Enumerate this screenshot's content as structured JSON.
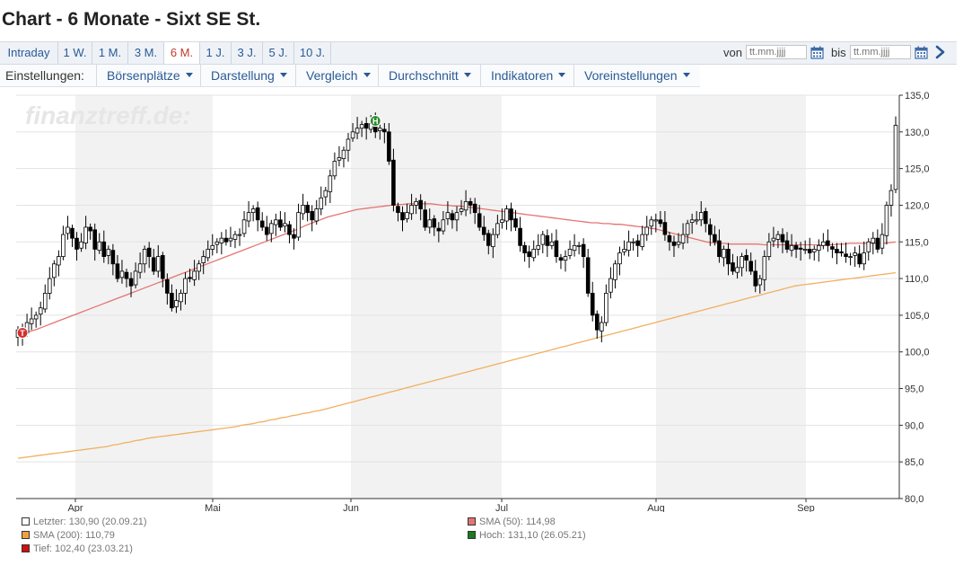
{
  "title": "Chart - 6 Monate - Sixt SE St.",
  "tabs": [
    {
      "label": "Intraday",
      "active": false
    },
    {
      "label": "1 W.",
      "active": false
    },
    {
      "label": "1 M.",
      "active": false
    },
    {
      "label": "3 M.",
      "active": false
    },
    {
      "label": "6 M.",
      "active": true
    },
    {
      "label": "1 J.",
      "active": false
    },
    {
      "label": "3 J.",
      "active": false
    },
    {
      "label": "5 J.",
      "active": false
    },
    {
      "label": "10 J.",
      "active": false
    }
  ],
  "date_range": {
    "from_label": "von",
    "from_placeholder": "tt.mm.jjjj",
    "to_label": "bis",
    "to_placeholder": "tt.mm.jjjj"
  },
  "settings": {
    "label": "Einstellungen:",
    "menus": [
      "Börsenplätze",
      "Darstellung",
      "Vergleich",
      "Durchschnitt",
      "Indikatoren",
      "Voreinstellungen"
    ]
  },
  "watermark": "finanztreff.de:",
  "colors": {
    "accent": "#2a5a96",
    "active_tab": "#c0392b",
    "sma50": "#e57373",
    "sma200": "#f0b060",
    "up_candle": "#ffffff",
    "down_candle": "#000000",
    "high_marker": "#2e8b2e",
    "low_marker": "#d32f2f",
    "shade": "#f2f2f2"
  },
  "chart_data": {
    "type": "candlestick",
    "ylim": [
      80,
      135
    ],
    "yticks": [
      "135,0",
      "130,0",
      "125,0",
      "120,0",
      "115,0",
      "110,0",
      "105,0",
      "100,0",
      "95,0",
      "90,0",
      "85,0",
      "80,0"
    ],
    "months": [
      "Apr",
      "Mai",
      "Jun",
      "Jul",
      "Aug",
      "Sep"
    ],
    "close": [
      103,
      102.4,
      104,
      104.5,
      105,
      106,
      108,
      110,
      112,
      113,
      116,
      117,
      115.5,
      114,
      115,
      117,
      116.5,
      114,
      115,
      113,
      114,
      112,
      110,
      111,
      110,
      109,
      111,
      112,
      114,
      113,
      111,
      113,
      110,
      108,
      106,
      107,
      108,
      110,
      110,
      111,
      112,
      113,
      114,
      114.5,
      115,
      115.5,
      115,
      115.5,
      116,
      116,
      118,
      119,
      119.5,
      118,
      117,
      116,
      117.5,
      118,
      117,
      117.5,
      116,
      115.5,
      119,
      120,
      119,
      118,
      119.5,
      121,
      122,
      124,
      126,
      126.5,
      127.5,
      129,
      130,
      130.5,
      131,
      130.5,
      131.1,
      130,
      130.5,
      130,
      126,
      120,
      119,
      118,
      119,
      120,
      120.5,
      119.5,
      117,
      118,
      117,
      116.5,
      118,
      119,
      118,
      119,
      119.5,
      120.5,
      120,
      119,
      117,
      116,
      114.5,
      116,
      117.5,
      118,
      119.5,
      118,
      117,
      114.5,
      113.5,
      113,
      114,
      114.5,
      116,
      114.5,
      115,
      113,
      112.5,
      113,
      114,
      114.5,
      114.5,
      113,
      108,
      105,
      103,
      104,
      108,
      110,
      112,
      113.5,
      114,
      115,
      115,
      114.5,
      116,
      117,
      118,
      118,
      117.5,
      116,
      115,
      114.5,
      115,
      116,
      117.5,
      118,
      118,
      119,
      117.5,
      116,
      115,
      113,
      114,
      112,
      111,
      111.5,
      113,
      112.5,
      111,
      109,
      110,
      113,
      115,
      115.5,
      116,
      115,
      114,
      114.5,
      114,
      114,
      114,
      113.5,
      114,
      114.5,
      115,
      114.5,
      114,
      113.5,
      113.5,
      113,
      113,
      113.5,
      112,
      113.5,
      115,
      115.5,
      114,
      116,
      120,
      122,
      130.9
    ],
    "sma50": [
      103,
      102.5,
      102.8,
      103,
      103.3,
      103.6,
      103.9,
      104.2,
      104.5,
      104.8,
      105.1,
      105.4,
      105.7,
      106,
      106.3,
      106.6,
      106.9,
      107.2,
      107.5,
      107.8,
      108.1,
      108.4,
      108.7,
      109,
      109.3,
      109.6,
      109.9,
      110.2,
      110.5,
      110.8,
      111.1,
      111.4,
      111.7,
      112,
      112.3,
      112.6,
      112.9,
      113.2,
      113.5,
      113.8,
      114.1,
      114.4,
      114.7,
      115,
      115.3,
      115.6,
      115.9,
      116.2,
      116.5,
      116.8,
      117.2,
      117.5,
      117.8,
      118.1,
      118.4,
      118.6,
      118.8,
      119,
      119.2,
      119.4,
      119.5,
      119.6,
      119.7,
      119.8,
      119.9,
      120,
      120.1,
      120.1,
      120.2,
      120.2,
      120.2,
      120.2,
      120.2,
      120.1,
      120,
      120,
      119.9,
      119.9,
      119.8,
      119.7,
      119.6,
      119.5,
      119.4,
      119.3,
      119.2,
      119.1,
      119,
      118.9,
      118.8,
      118.7,
      118.6,
      118.5,
      118.4,
      118.3,
      118.2,
      118.1,
      118,
      117.9,
      117.8,
      117.7,
      117.6,
      117.6,
      117.5,
      117.5,
      117.4,
      117.4,
      117.3,
      117.2,
      117.1,
      117,
      116.9,
      116.8,
      116.6,
      116.4,
      116.2,
      116,
      115.8,
      115.6,
      115.4,
      115.2,
      115,
      114.9,
      114.8,
      114.8,
      114.7,
      114.7,
      114.7,
      114.7,
      114.7,
      114.7,
      114.6,
      114.6,
      114.6,
      114.6,
      114.6,
      114.6,
      114.6,
      114.6,
      114.6,
      114.6,
      114.6,
      114.6,
      114.6,
      114.7,
      114.7,
      114.8,
      114.8,
      114.8,
      114.8,
      114.8,
      114.8,
      114.8,
      114.9,
      114.98
    ],
    "sma200": [
      85.5,
      85.6,
      85.7,
      85.8,
      85.9,
      86,
      86.1,
      86.2,
      86.3,
      86.4,
      86.5,
      86.6,
      86.7,
      86.8,
      86.9,
      87,
      87.1,
      87.3,
      87.4,
      87.6,
      87.7,
      87.9,
      88,
      88.2,
      88.3,
      88.4,
      88.5,
      88.6,
      88.7,
      88.8,
      88.9,
      89,
      89.1,
      89.2,
      89.3,
      89.4,
      89.5,
      89.6,
      89.7,
      89.8,
      90,
      90.1,
      90.2,
      90.4,
      90.5,
      90.7,
      90.8,
      91,
      91.1,
      91.3,
      91.4,
      91.6,
      91.7,
      91.9,
      92,
      92.2,
      92.4,
      92.6,
      92.8,
      93,
      93.2,
      93.4,
      93.6,
      93.8,
      94,
      94.2,
      94.4,
      94.6,
      94.8,
      95,
      95.2,
      95.4,
      95.6,
      95.8,
      96,
      96.2,
      96.4,
      96.6,
      96.8,
      97,
      97.2,
      97.4,
      97.6,
      97.8,
      98,
      98.2,
      98.4,
      98.6,
      98.8,
      99,
      99.2,
      99.4,
      99.6,
      99.8,
      100,
      100.2,
      100.4,
      100.6,
      100.8,
      101,
      101.2,
      101.4,
      101.6,
      101.8,
      102,
      102.2,
      102.4,
      102.6,
      102.8,
      103,
      103.2,
      103.4,
      103.6,
      103.8,
      104,
      104.2,
      104.4,
      104.6,
      104.8,
      105,
      105.2,
      105.4,
      105.6,
      105.8,
      106,
      106.2,
      106.4,
      106.6,
      106.8,
      107,
      107.2,
      107.4,
      107.6,
      107.8,
      108,
      108.2,
      108.4,
      108.6,
      108.8,
      109,
      109.1,
      109.2,
      109.3,
      109.4,
      109.5,
      109.6,
      109.7,
      109.8,
      109.9,
      110,
      110.1,
      110.2,
      110.3,
      110.4,
      110.5,
      110.6,
      110.7,
      110.79
    ],
    "high_marker": {
      "label": "H",
      "index": 79
    },
    "low_marker": {
      "label": "T",
      "index": 1
    },
    "legend": [
      {
        "label": "Letzter: 130,90 (20.09.21)",
        "color": "#ffffff"
      },
      {
        "label": "SMA (50): 114,98",
        "color": "#e57373"
      },
      {
        "label": "SMA (200): 110,79",
        "color": "#f0a040"
      },
      {
        "label": "Hoch: 131,10 (26.05.21)",
        "color": "#1e7a1e"
      },
      {
        "label": "Tief: 102,40 (23.03.21)",
        "color": "#d01010"
      }
    ]
  }
}
